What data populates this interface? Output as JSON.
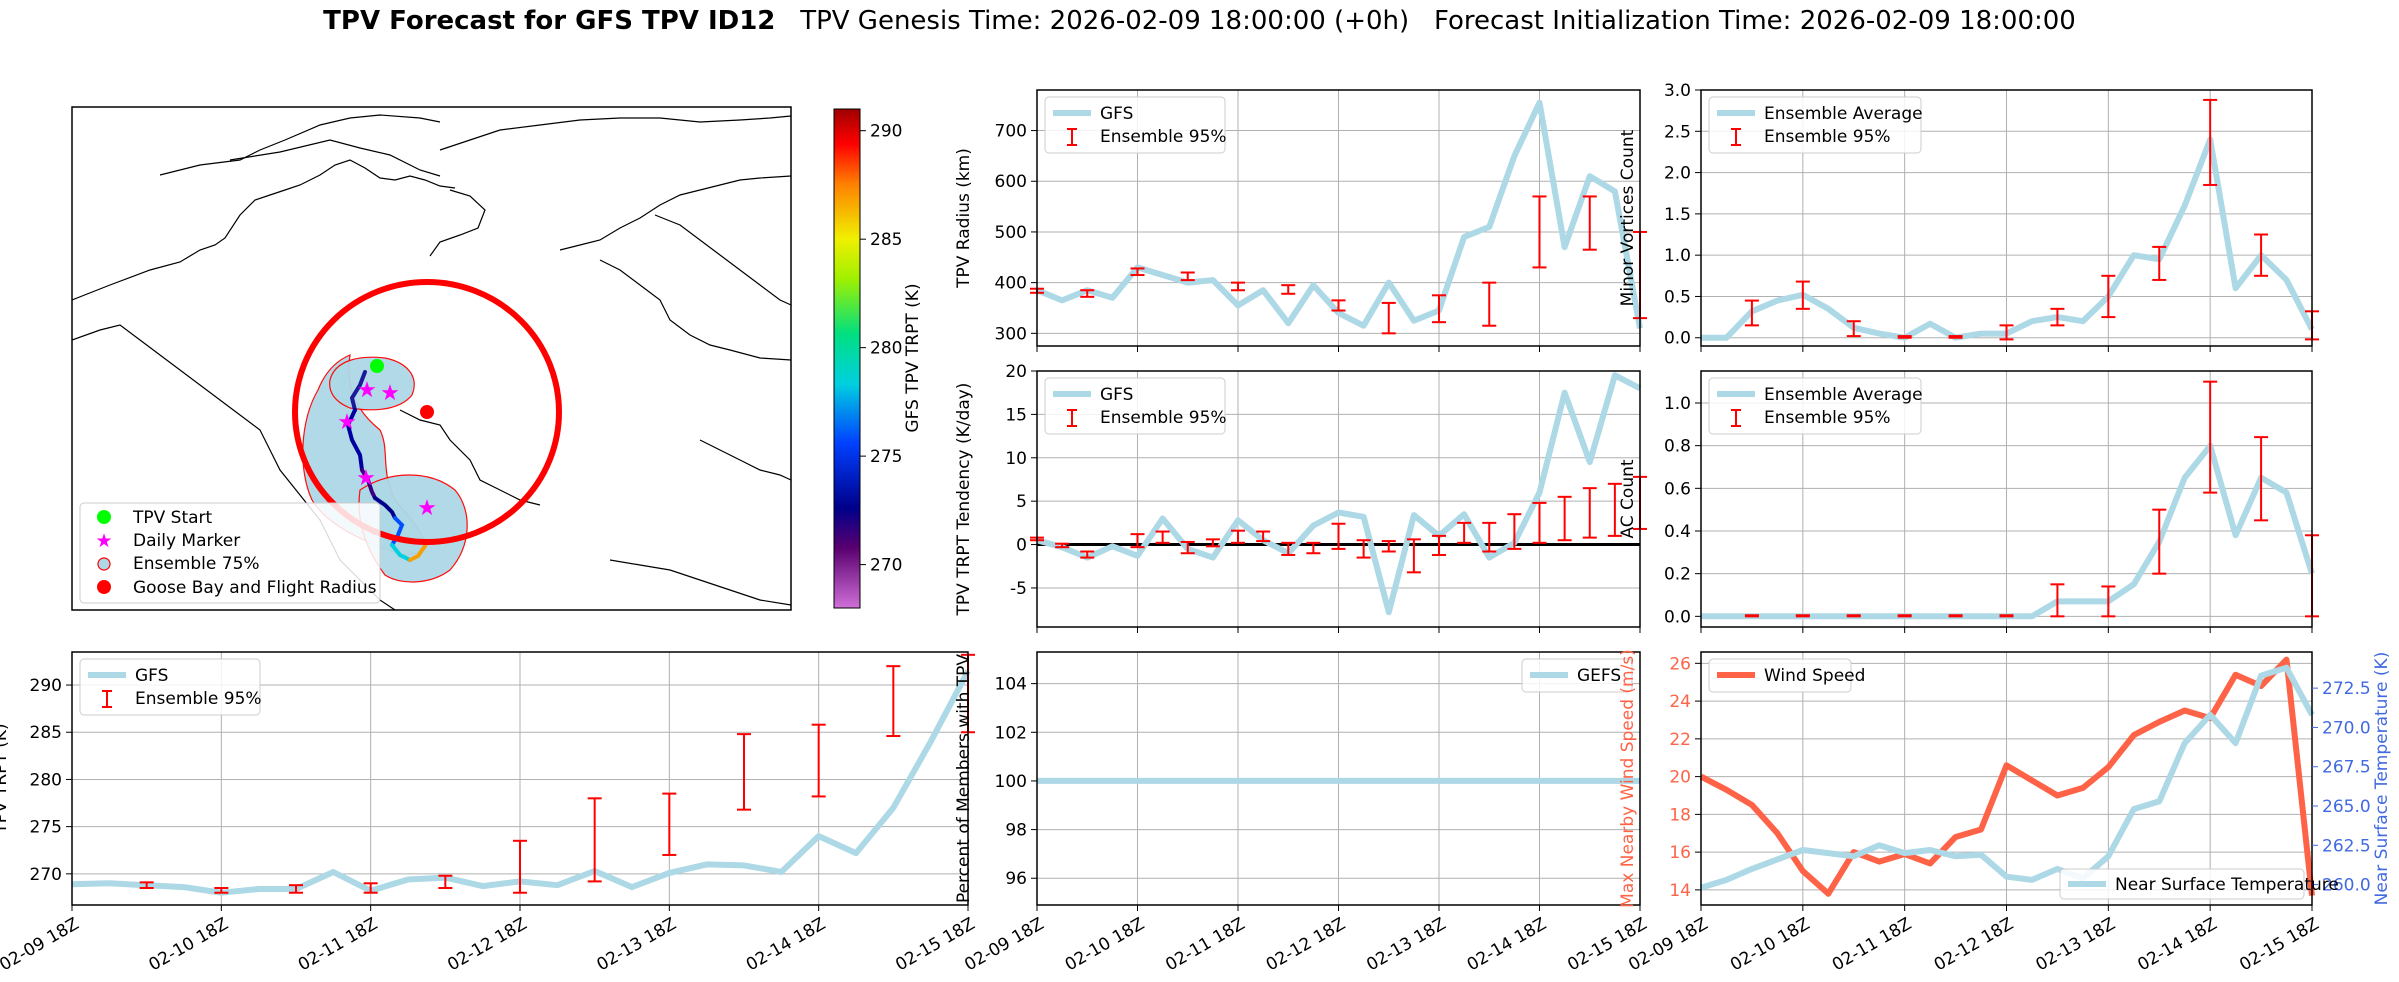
{
  "suptitle": {
    "bold": "TPV Forecast for GFS TPV ID12",
    "genesis": "TPV Genesis Time: 2026-02-09 18:00:00 (+0h)",
    "init": "Forecast Initialization Time: 2026-02-09 18:00:00"
  },
  "x_tick_labels": [
    "02-09 18Z",
    "02-10 18Z",
    "02-11 18Z",
    "02-12 18Z",
    "02-13 18Z",
    "02-14 18Z",
    "02-15 18Z"
  ],
  "colors": {
    "gfs": "#add8e6",
    "ensemble": "#ff0000",
    "wind": "#ff6347",
    "temp_axis": "#4169e1",
    "zero_line": "#000000",
    "grid": "#b0b0b0"
  },
  "map": {
    "colorbar_label": "GFS TPV TRPT (K)",
    "colorbar_ticks": [
      270,
      275,
      280,
      285,
      290
    ],
    "colorbar_range": [
      268,
      291
    ],
    "legend": [
      "TPV Start",
      "Daily Marker",
      "Ensemble 75%",
      "Goose Bay and Flight Radius"
    ]
  },
  "chart_data": [
    {
      "id": "radius",
      "type": "line",
      "ylabel": "TPV Radius (km)",
      "ylim": [
        275,
        780
      ],
      "yticks": [
        300,
        400,
        500,
        600,
        700
      ],
      "legend": [
        "GFS",
        "Ensemble 95%"
      ],
      "legend_loc": "upper-left",
      "series": [
        {
          "name": "GFS",
          "values": [
            385,
            365,
            385,
            370,
            430,
            415,
            400,
            405,
            355,
            385,
            320,
            395,
            340,
            315,
            400,
            325,
            345,
            490,
            510,
            650,
            755,
            470,
            610,
            580,
            310
          ]
        }
      ],
      "errorbars": [
        {
          "i": 0,
          "lo": 380,
          "hi": 388
        },
        {
          "i": 2,
          "lo": 372,
          "hi": 385
        },
        {
          "i": 4,
          "lo": 415,
          "hi": 428
        },
        {
          "i": 6,
          "lo": 405,
          "hi": 420
        },
        {
          "i": 8,
          "lo": 385,
          "hi": 400
        },
        {
          "i": 10,
          "lo": 378,
          "hi": 395
        },
        {
          "i": 12,
          "lo": 345,
          "hi": 365
        },
        {
          "i": 14,
          "lo": 300,
          "hi": 360
        },
        {
          "i": 16,
          "lo": 322,
          "hi": 375
        },
        {
          "i": 18,
          "lo": 315,
          "hi": 400
        },
        {
          "i": 20,
          "lo": 430,
          "hi": 570
        },
        {
          "i": 22,
          "lo": 465,
          "hi": 570
        },
        {
          "i": 24,
          "lo": 330,
          "hi": 500
        }
      ]
    },
    {
      "id": "vortices",
      "type": "line",
      "ylabel": "Minor Vortices Count",
      "ylim": [
        -0.1,
        3.0
      ],
      "yticks": [
        0.0,
        0.5,
        1.0,
        1.5,
        2.0,
        2.5,
        3.0
      ],
      "legend": [
        "Ensemble Average",
        "Ensemble 95%"
      ],
      "legend_loc": "upper-left",
      "series": [
        {
          "name": "Ensemble Average",
          "values": [
            0,
            0,
            0.32,
            0.45,
            0.52,
            0.35,
            0.12,
            0.05,
            0,
            0.17,
            0,
            0.05,
            0.05,
            0.2,
            0.25,
            0.2,
            0.5,
            1.0,
            0.95,
            1.6,
            2.4,
            0.6,
            1.0,
            0.7,
            0.1
          ]
        }
      ],
      "errorbars": [
        {
          "i": 2,
          "lo": 0.15,
          "hi": 0.45
        },
        {
          "i": 4,
          "lo": 0.35,
          "hi": 0.68
        },
        {
          "i": 6,
          "lo": 0.02,
          "hi": 0.2
        },
        {
          "i": 8,
          "lo": 0,
          "hi": 0.02
        },
        {
          "i": 10,
          "lo": 0,
          "hi": 0.02
        },
        {
          "i": 12,
          "lo": -0.02,
          "hi": 0.15
        },
        {
          "i": 14,
          "lo": 0.15,
          "hi": 0.35
        },
        {
          "i": 16,
          "lo": 0.25,
          "hi": 0.75
        },
        {
          "i": 18,
          "lo": 0.7,
          "hi": 1.1
        },
        {
          "i": 20,
          "lo": 1.85,
          "hi": 2.88
        },
        {
          "i": 22,
          "lo": 0.75,
          "hi": 1.25
        },
        {
          "i": 24,
          "lo": -0.02,
          "hi": 0.32
        }
      ]
    },
    {
      "id": "tendency",
      "type": "line",
      "ylabel": "TPV TRPT Tendency (K/day)",
      "ylim": [
        -9.5,
        20
      ],
      "yticks": [
        -5,
        0,
        5,
        10,
        15,
        20
      ],
      "legend": [
        "GFS",
        "Ensemble 95%"
      ],
      "legend_loc": "upper-left",
      "zero_line": true,
      "series": [
        {
          "name": "GFS",
          "values": [
            0.5,
            -0.3,
            -1.5,
            -0.2,
            -1.3,
            3.0,
            -0.5,
            -1.5,
            2.8,
            0.5,
            -1.0,
            2.2,
            3.7,
            3.2,
            -7.8,
            3.4,
            1.0,
            3.5,
            -1.5,
            0.2,
            6.0,
            17.5,
            9.5,
            19.5,
            18.0
          ]
        }
      ],
      "errorbars": [
        {
          "i": 0,
          "lo": 0.5,
          "hi": 0.8
        },
        {
          "i": 1,
          "lo": -0.3,
          "hi": 0.1
        },
        {
          "i": 2,
          "lo": -1.5,
          "hi": -0.8
        },
        {
          "i": 4,
          "lo": -0.3,
          "hi": 1.2
        },
        {
          "i": 5,
          "lo": 0.2,
          "hi": 1.5
        },
        {
          "i": 6,
          "lo": -1.0,
          "hi": 0.3
        },
        {
          "i": 7,
          "lo": -0.2,
          "hi": 0.6
        },
        {
          "i": 8,
          "lo": 0.2,
          "hi": 1.6
        },
        {
          "i": 9,
          "lo": 0.4,
          "hi": 1.5
        },
        {
          "i": 10,
          "lo": -1.2,
          "hi": 0.2
        },
        {
          "i": 11,
          "lo": -1.0,
          "hi": 0.2
        },
        {
          "i": 12,
          "lo": -0.5,
          "hi": 2.4
        },
        {
          "i": 13,
          "lo": -1.5,
          "hi": 0.5
        },
        {
          "i": 14,
          "lo": -0.8,
          "hi": 0.4
        },
        {
          "i": 15,
          "lo": -3.2,
          "hi": 0.6
        },
        {
          "i": 16,
          "lo": -1.2,
          "hi": 1.0
        },
        {
          "i": 17,
          "lo": 0.2,
          "hi": 2.5
        },
        {
          "i": 18,
          "lo": -0.8,
          "hi": 2.5
        },
        {
          "i": 19,
          "lo": -0.5,
          "hi": 3.5
        },
        {
          "i": 20,
          "lo": 0.2,
          "hi": 4.8
        },
        {
          "i": 21,
          "lo": 0.5,
          "hi": 5.5
        },
        {
          "i": 22,
          "lo": 0.8,
          "hi": 6.5
        },
        {
          "i": 23,
          "lo": 1.0,
          "hi": 7.0
        },
        {
          "i": 24,
          "lo": 1.8,
          "hi": 7.8
        }
      ]
    },
    {
      "id": "ac",
      "type": "line",
      "ylabel": "AC Count",
      "ylim": [
        -0.05,
        1.15
      ],
      "yticks": [
        0.0,
        0.2,
        0.4,
        0.6,
        0.8,
        1.0
      ],
      "legend": [
        "Ensemble Average",
        "Ensemble 95%"
      ],
      "legend_loc": "upper-left",
      "series": [
        {
          "name": "Ensemble Average",
          "values": [
            0,
            0,
            0,
            0,
            0,
            0,
            0,
            0,
            0,
            0,
            0,
            0,
            0,
            0,
            0.07,
            0.07,
            0.07,
            0.15,
            0.35,
            0.65,
            0.8,
            0.38,
            0.65,
            0.58,
            0.2
          ]
        }
      ],
      "errorbars": [
        {
          "i": 2,
          "lo": 0,
          "hi": 0.005
        },
        {
          "i": 4,
          "lo": 0,
          "hi": 0.005
        },
        {
          "i": 6,
          "lo": 0,
          "hi": 0.005
        },
        {
          "i": 8,
          "lo": 0,
          "hi": 0.005
        },
        {
          "i": 10,
          "lo": 0,
          "hi": 0.005
        },
        {
          "i": 12,
          "lo": 0,
          "hi": 0.005
        },
        {
          "i": 14,
          "lo": 0,
          "hi": 0.15
        },
        {
          "i": 16,
          "lo": 0,
          "hi": 0.14
        },
        {
          "i": 18,
          "lo": 0.2,
          "hi": 0.5
        },
        {
          "i": 20,
          "lo": 0.58,
          "hi": 1.1
        },
        {
          "i": 22,
          "lo": 0.45,
          "hi": 0.84
        },
        {
          "i": 24,
          "lo": 0,
          "hi": 0.38
        }
      ]
    },
    {
      "id": "trpt",
      "type": "line",
      "ylabel": "TPV TRPT (K)",
      "ylim": [
        266.7,
        293.5
      ],
      "yticks": [
        270,
        275,
        280,
        285,
        290
      ],
      "legend": [
        "GFS",
        "Ensemble 95%"
      ],
      "legend_loc": "upper-left",
      "series": [
        {
          "name": "GFS",
          "values": [
            268.9,
            269.0,
            268.8,
            268.6,
            268.0,
            268.4,
            268.4,
            270.2,
            268.2,
            269.4,
            269.6,
            268.7,
            269.2,
            268.8,
            270.3,
            268.6,
            270.1,
            271.0,
            270.9,
            270.2,
            274.0,
            272.2,
            277.0,
            284.0,
            291.5
          ]
        }
      ],
      "errorbars": [
        {
          "i": 2,
          "lo": 268.5,
          "hi": 269.1
        },
        {
          "i": 4,
          "lo": 268.0,
          "hi": 268.5
        },
        {
          "i": 6,
          "lo": 268.0,
          "hi": 268.8
        },
        {
          "i": 8,
          "lo": 268.0,
          "hi": 269.0
        },
        {
          "i": 10,
          "lo": 268.5,
          "hi": 269.8
        },
        {
          "i": 12,
          "lo": 268.0,
          "hi": 273.5
        },
        {
          "i": 14,
          "lo": 269.2,
          "hi": 278.0
        },
        {
          "i": 16,
          "lo": 272.0,
          "hi": 278.5
        },
        {
          "i": 18,
          "lo": 276.8,
          "hi": 284.8
        },
        {
          "i": 20,
          "lo": 278.2,
          "hi": 285.8
        },
        {
          "i": 22,
          "lo": 284.6,
          "hi": 292.0
        },
        {
          "i": 24,
          "lo": 285.0,
          "hi": 293.2
        }
      ]
    },
    {
      "id": "percent",
      "type": "line",
      "ylabel": "Percent of Members with TPV",
      "ylim": [
        94.9,
        105.3
      ],
      "yticks": [
        96,
        98,
        100,
        102,
        104
      ],
      "legend": [
        "GEFS"
      ],
      "legend_loc": "upper-right",
      "series": [
        {
          "name": "GEFS",
          "values": [
            100,
            100,
            100,
            100,
            100,
            100,
            100,
            100,
            100,
            100,
            100,
            100,
            100,
            100,
            100,
            100,
            100,
            100,
            100,
            100,
            100,
            100,
            100,
            100,
            100
          ]
        }
      ],
      "errorbars": []
    },
    {
      "id": "wind",
      "type": "line",
      "ylabel": "Max Nearby Wind Speed (m/s)",
      "ylabel_right": "Near Surface Temperature (K)",
      "ylim": [
        13.2,
        26.6
      ],
      "yticks": [
        14,
        16,
        18,
        20,
        22,
        24,
        26
      ],
      "ylim_right": [
        258.7,
        274.8
      ],
      "yticks_right": [
        260.0,
        262.5,
        265.0,
        267.5,
        270.0,
        272.5
      ],
      "legend": [
        "Wind Speed"
      ],
      "legend_right": [
        "Near Surface Temperature"
      ],
      "series": [
        {
          "name": "Wind Speed",
          "axis": "left",
          "values": [
            20.0,
            19.3,
            18.5,
            17.0,
            15.0,
            13.8,
            16.0,
            15.5,
            15.9,
            15.4,
            16.8,
            17.2,
            20.6,
            19.8,
            19.0,
            19.4,
            20.5,
            22.2,
            22.9,
            23.5,
            23.1,
            25.4,
            24.8,
            26.2,
            13.7
          ]
        },
        {
          "name": "Near Surface Temperature",
          "axis": "right",
          "values": [
            259.8,
            260.3,
            261.0,
            261.6,
            262.2,
            262.0,
            261.8,
            262.5,
            262.0,
            262.2,
            261.8,
            261.9,
            260.5,
            260.3,
            261.0,
            260.4,
            261.8,
            264.8,
            265.3,
            269.0,
            270.8,
            269.0,
            273.3,
            273.8,
            270.8
          ]
        }
      ],
      "errorbars": []
    }
  ]
}
